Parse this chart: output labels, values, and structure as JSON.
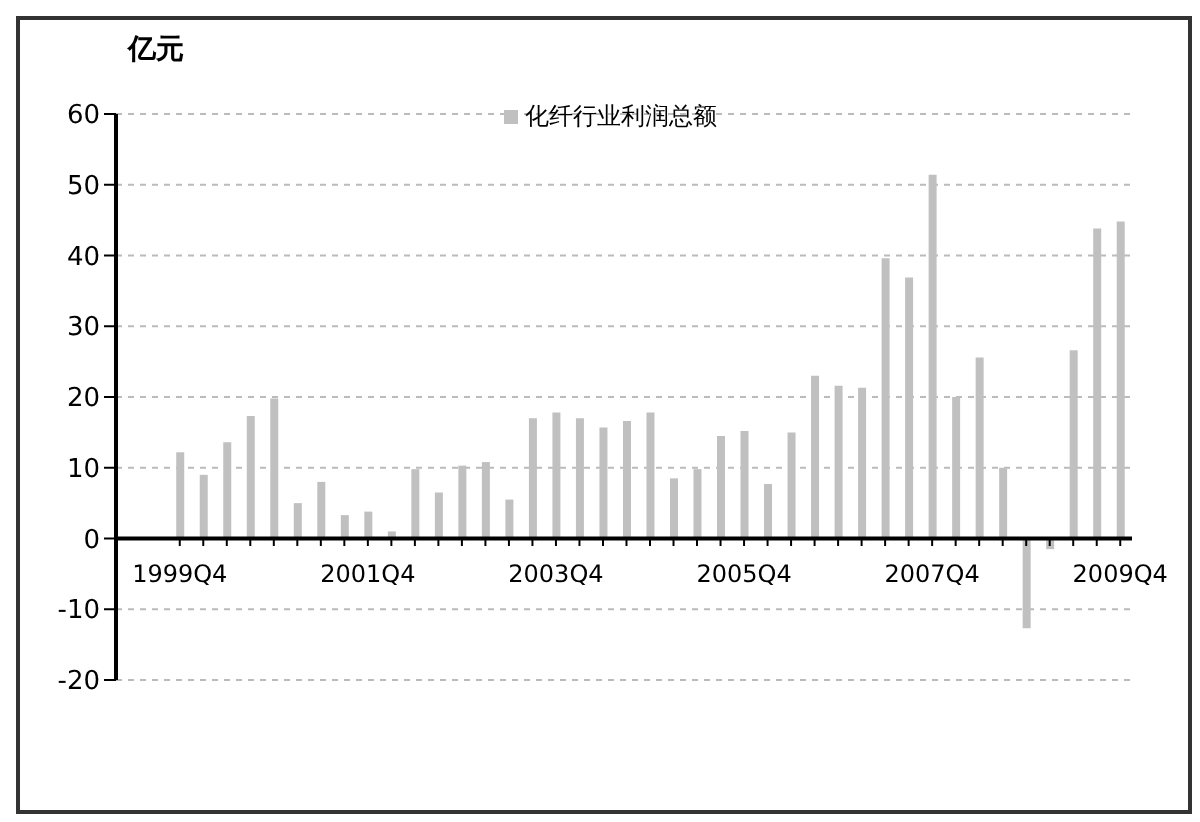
{
  "chart_data": {
    "type": "bar",
    "ylabel": "亿元",
    "categories": [
      "1999Q4",
      null,
      null,
      null,
      null,
      null,
      null,
      null,
      "2001Q4",
      null,
      null,
      null,
      null,
      null,
      null,
      null,
      "2003Q4",
      null,
      null,
      null,
      null,
      null,
      null,
      null,
      "2005Q4",
      null,
      null,
      null,
      null,
      null,
      null,
      null,
      "2007Q4",
      null,
      null,
      null,
      null,
      null,
      null,
      null,
      "2009Q4"
    ],
    "series": [
      {
        "name": "化纤行业利润总额",
        "color": "#c0c0c0",
        "values": [
          12.2,
          9,
          13.6,
          17.3,
          19.8,
          5,
          8,
          3.3,
          3.8,
          1,
          9.8,
          6.5,
          10.3,
          10.8,
          5.5,
          17,
          17.8,
          17,
          15.7,
          16.6,
          17.8,
          8.5,
          9.8,
          14.5,
          15.2,
          7.7,
          15,
          23,
          21.6,
          21.3,
          39.6,
          36.9,
          51.4,
          20,
          25.6,
          10,
          -12.7,
          -1.5,
          26.6,
          43.8,
          44.8
        ]
      }
    ],
    "ylim": [
      -20,
      60
    ],
    "yticks": [
      -20,
      -10,
      0,
      10,
      20,
      30,
      40,
      50,
      60
    ],
    "grid": "y",
    "legend": "top"
  }
}
